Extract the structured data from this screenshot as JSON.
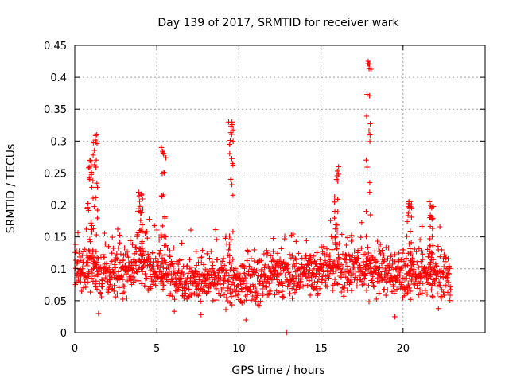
{
  "chart_data": {
    "type": "scatter",
    "title": "Day 139 of 2017, SRMTID for receiver wark",
    "xlabel": "GPS time / hours",
    "ylabel": "SRMTID / TECUs",
    "xlim": [
      0,
      25
    ],
    "ylim": [
      0,
      0.45
    ],
    "xticks": [
      0,
      5,
      10,
      15,
      20
    ],
    "xtick_labels": [
      "0",
      "5",
      "10",
      "15",
      "20"
    ],
    "yticks": [
      0,
      0.05,
      0.1,
      0.15,
      0.2,
      0.25,
      0.3,
      0.35,
      0.4,
      0.45
    ],
    "ytick_labels": [
      "0",
      "0.05",
      "0.1",
      "0.15",
      "0.2",
      "0.25",
      "0.3",
      "0.35",
      "0.4",
      "0.45"
    ],
    "grid": true,
    "marker": "+",
    "marker_color": "#ff0000",
    "x_data_range": [
      0,
      22.9
    ],
    "baseline": [
      [
        0,
        0.1
      ],
      [
        1,
        0.1
      ],
      [
        2,
        0.09
      ],
      [
        3,
        0.1
      ],
      [
        4,
        0.11
      ],
      [
        5,
        0.1
      ],
      [
        6,
        0.09
      ],
      [
        7,
        0.085
      ],
      [
        8,
        0.08
      ],
      [
        9,
        0.085
      ],
      [
        10,
        0.075
      ],
      [
        11,
        0.08
      ],
      [
        12,
        0.09
      ],
      [
        13,
        0.09
      ],
      [
        14,
        0.095
      ],
      [
        15,
        0.1
      ],
      [
        16,
        0.1
      ],
      [
        17,
        0.1
      ],
      [
        18,
        0.1
      ],
      [
        19,
        0.095
      ],
      [
        20,
        0.09
      ],
      [
        21,
        0.09
      ],
      [
        22,
        0.09
      ],
      [
        22.9,
        0.085
      ]
    ],
    "spikes": [
      {
        "x": 0.9,
        "peak": 0.27
      },
      {
        "x": 1.25,
        "peak": 0.31
      },
      {
        "x": 4.0,
        "peak": 0.22
      },
      {
        "x": 5.4,
        "peak": 0.29
      },
      {
        "x": 9.5,
        "peak": 0.33
      },
      {
        "x": 15.95,
        "peak": 0.26
      },
      {
        "x": 17.9,
        "peak": 0.425
      },
      {
        "x": 20.4,
        "peak": 0.205
      },
      {
        "x": 21.7,
        "peak": 0.205
      }
    ],
    "extremes": [
      {
        "x": 12.9,
        "y": 0.0
      },
      {
        "x": 1.45,
        "y": 0.03
      },
      {
        "x": 19.5,
        "y": 0.025
      }
    ]
  }
}
